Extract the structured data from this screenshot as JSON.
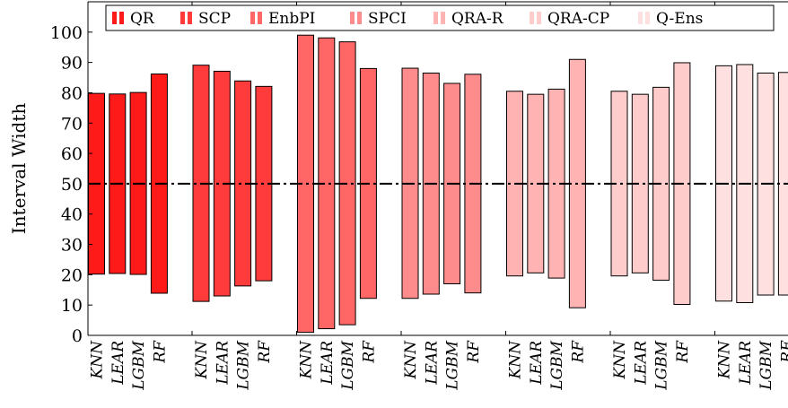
{
  "chart_data": {
    "type": "bar",
    "subtype": "floating-range",
    "title": "",
    "xlabel": "",
    "ylabel": "Interval Width",
    "ylim": [
      0,
      110
    ],
    "yticks": [
      0,
      10,
      20,
      30,
      40,
      50,
      60,
      70,
      80,
      90,
      100
    ],
    "reference_line": 50,
    "grid": false,
    "legend_position": "top",
    "categories": [
      "KNN",
      "LEAR",
      "LGBM",
      "RF"
    ],
    "series": [
      {
        "name": "QR",
        "color": "#ff1a1a",
        "low": [
          20.2,
          20.4,
          20.1,
          13.9
        ],
        "high": [
          79.8,
          79.6,
          80.1,
          86.2
        ]
      },
      {
        "name": "SCP",
        "color": "#ff3b3b",
        "low": [
          11.2,
          13.0,
          16.3,
          18.0
        ],
        "high": [
          89.1,
          87.1,
          83.9,
          82.1
        ]
      },
      {
        "name": "EnbPI",
        "color": "#ff6666",
        "low": [
          1.0,
          2.2,
          3.5,
          12.2
        ],
        "high": [
          99.0,
          98.1,
          96.8,
          88.0
        ]
      },
      {
        "name": "SPCI",
        "color": "#ff8c8c",
        "low": [
          12.2,
          13.6,
          17.0,
          14.0
        ],
        "high": [
          88.1,
          86.5,
          83.1,
          86.1
        ]
      },
      {
        "name": "QRA-R",
        "color": "#ffb3b3",
        "low": [
          19.6,
          20.6,
          18.9,
          9.1
        ],
        "high": [
          80.5,
          79.5,
          81.2,
          91.0
        ]
      },
      {
        "name": "QRA-CP",
        "color": "#ffcccc",
        "low": [
          19.6,
          20.6,
          18.2,
          10.2
        ],
        "high": [
          80.5,
          79.5,
          81.8,
          89.9
        ]
      },
      {
        "name": "Q-Ens",
        "color": "#ffe0e0",
        "low": [
          11.3,
          10.8,
          13.3,
          13.3
        ],
        "high": [
          88.9,
          89.3,
          86.5,
          86.7
        ]
      }
    ]
  }
}
